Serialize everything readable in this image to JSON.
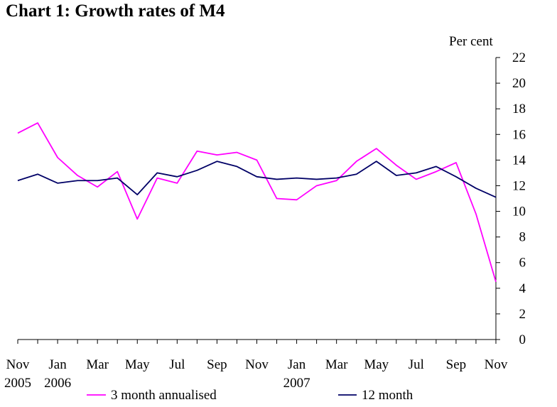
{
  "chart_data": {
    "type": "line",
    "title": "Chart 1: Growth rates of M4",
    "ylabel": "Per cent",
    "xlabel": "",
    "ylim": [
      0,
      22
    ],
    "yticks": [
      0,
      2,
      4,
      6,
      8,
      10,
      12,
      14,
      16,
      18,
      20,
      22
    ],
    "x_periods": 25,
    "xtick_labels": [
      {
        "i": 0,
        "month": "Nov",
        "year": "2005"
      },
      {
        "i": 2,
        "month": "Jan",
        "year": "2006"
      },
      {
        "i": 4,
        "month": "Mar",
        "year": ""
      },
      {
        "i": 6,
        "month": "May",
        "year": ""
      },
      {
        "i": 8,
        "month": "Jul",
        "year": ""
      },
      {
        "i": 10,
        "month": "Sep",
        "year": ""
      },
      {
        "i": 12,
        "month": "Nov",
        "year": ""
      },
      {
        "i": 14,
        "month": "Jan",
        "year": "2007"
      },
      {
        "i": 16,
        "month": "Mar",
        "year": ""
      },
      {
        "i": 18,
        "month": "May",
        "year": ""
      },
      {
        "i": 20,
        "month": "Jul",
        "year": ""
      },
      {
        "i": 22,
        "month": "Sep",
        "year": ""
      },
      {
        "i": 24,
        "month": "Nov",
        "year": ""
      }
    ],
    "series": [
      {
        "name": "3 month annualised",
        "color": "#ff00ff",
        "values": [
          16.1,
          16.9,
          14.2,
          12.8,
          11.9,
          13.1,
          9.4,
          12.6,
          12.2,
          14.7,
          14.4,
          14.6,
          14.0,
          11.0,
          10.9,
          12.0,
          12.4,
          13.9,
          14.9,
          13.6,
          12.5,
          13.1,
          13.8,
          9.8,
          4.5
        ]
      },
      {
        "name": "12 month",
        "color": "#000066",
        "values": [
          12.4,
          12.9,
          12.2,
          12.4,
          12.4,
          12.6,
          11.3,
          13.0,
          12.7,
          13.2,
          13.9,
          13.5,
          12.7,
          12.5,
          12.6,
          12.5,
          12.6,
          12.9,
          13.9,
          12.8,
          13.0,
          13.5,
          12.7,
          11.8,
          11.1
        ]
      }
    ]
  }
}
